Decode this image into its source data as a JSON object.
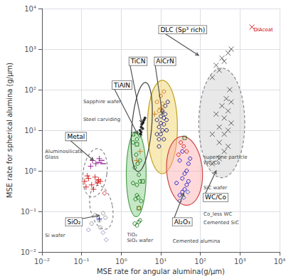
{
  "chart_data": {
    "type": "scatter",
    "x_label": "MSE rate for angular alumina(g/μm)",
    "y_label": "MSE rate for spherical alumina (g/μm)",
    "log": true,
    "grid": true,
    "xlim": [
      0.01,
      10000
    ],
    "ylim": [
      0.01,
      10000
    ],
    "xticks": [
      {
        "value": 0.01,
        "label": "10⁻²"
      },
      {
        "value": 0.1,
        "label": "10⁻¹"
      },
      {
        "value": 1,
        "label": "10⁰"
      },
      {
        "value": 10,
        "label": "10¹"
      },
      {
        "value": 100,
        "label": "10²"
      },
      {
        "value": 1000,
        "label": "10³"
      },
      {
        "value": 10000,
        "label": "10⁴"
      }
    ],
    "yticks": [
      {
        "value": 0.01,
        "label": "10⁻²"
      },
      {
        "value": 0.1,
        "label": "10⁻¹"
      },
      {
        "value": 1,
        "label": "10⁰"
      },
      {
        "value": 10,
        "label": "10¹"
      },
      {
        "value": 100,
        "label": "10²"
      },
      {
        "value": 1000,
        "label": "10³"
      },
      {
        "value": 10000,
        "label": "10⁴"
      }
    ],
    "series": [
      {
        "color": "#cc0000",
        "marker": "plus",
        "x": [
          0.12,
          0.15,
          0.18,
          0.22,
          0.25,
          0.3,
          0.13,
          0.2,
          0.14,
          0.27
        ],
        "values": [
          0.55,
          0.65,
          0.45,
          0.7,
          0.5,
          0.55,
          0.4,
          0.35,
          0.75,
          0.6
        ]
      },
      {
        "color": "#880088",
        "marker": "plus",
        "x": [
          0.19,
          0.23,
          0.28,
          0.17
        ],
        "values": [
          1.8,
          1.5,
          2.0,
          1.3
        ]
      },
      {
        "color": "#cc0000",
        "marker": "diamond",
        "x": [
          0.25,
          0.38
        ],
        "values": [
          0.55,
          0.28
        ]
      },
      {
        "color": "#888888",
        "marker": "circle",
        "x": [
          0.22,
          0.28,
          0.35,
          0.4,
          0.18,
          0.3
        ],
        "values": [
          0.08,
          0.06,
          0.09,
          0.07,
          0.05,
          0.04
        ]
      },
      {
        "color": "#8888cc",
        "marker": "diamond",
        "x": [
          0.15,
          0.35,
          0.42
        ],
        "values": [
          0.035,
          0.03,
          0.02
        ]
      },
      {
        "color": "#0000aa",
        "marker": "plus",
        "x": [
          0.28
        ],
        "values": [
          0.065
        ]
      },
      {
        "color": "#880088",
        "marker": "hbar",
        "x": [
          0.28,
          0.32,
          0.35
        ],
        "values": [
          1.6,
          1.8,
          1.5
        ]
      },
      {
        "color": "#006600",
        "marker": "circle",
        "x": [
          2.2,
          2.5,
          2.8,
          3.0,
          2.3,
          2.5,
          2.7,
          3.2,
          2.0,
          2.5,
          3.0,
          2.8,
          2.2,
          2.6,
          3.0,
          2.4,
          2.0,
          2.5,
          3.0
        ],
        "values": [
          0.05,
          0.045,
          0.055,
          0.06,
          0.2,
          0.25,
          0.22,
          0.18,
          0.5,
          0.45,
          0.55,
          0.8,
          1.2,
          1.5,
          1.8,
          2.5,
          5.0,
          6.0,
          7.5
        ]
      },
      {
        "color": "#006600",
        "marker": "square",
        "x": [
          2.0,
          2.5,
          3.5,
          2.8
        ],
        "values": [
          8.0,
          4.5,
          0.55,
          0.12
        ]
      },
      {
        "color": "#cc6600",
        "marker": "plus",
        "x": [
          2.5,
          3.0
        ],
        "values": [
          1.8,
          3.0
        ]
      },
      {
        "color": "#cc6600",
        "marker": "diamond",
        "x": [
          2.8
        ],
        "values": [
          0.12
        ]
      },
      {
        "color": "#000000",
        "marker": "dot",
        "x": [
          3.0,
          3.2,
          3.5,
          3.8,
          4.0,
          3.1,
          3.3,
          3.6,
          3.2,
          3.5
        ],
        "values": [
          10,
          12,
          15,
          18,
          20,
          8,
          14,
          16,
          9,
          11
        ]
      },
      {
        "color": "#000080",
        "marker": "circle",
        "x": [
          8,
          9,
          10,
          12,
          13,
          11,
          9,
          10,
          12,
          14,
          8,
          10,
          11,
          13,
          15,
          9,
          12,
          14
        ],
        "values": [
          8,
          12,
          15,
          20,
          25,
          10,
          6,
          8,
          14,
          18,
          18,
          22,
          30,
          40,
          50,
          4,
          6,
          10
        ]
      },
      {
        "color": "#cc6600",
        "marker": "circle",
        "x": [
          8,
          10,
          12,
          9,
          11
        ],
        "values": [
          50,
          70,
          90,
          30,
          45
        ]
      },
      {
        "color": "#cc6600",
        "marker": "plus",
        "x": [
          7,
          10
        ],
        "values": [
          25,
          35
        ]
      },
      {
        "color": "#006600",
        "marker": "square",
        "x": [
          40
        ],
        "values": [
          6.5
        ]
      },
      {
        "color": "#0000cc",
        "marker": "circle",
        "x": [
          30,
          35,
          40,
          45,
          50,
          35,
          40,
          45,
          50,
          55,
          30,
          35,
          25
        ],
        "values": [
          0.25,
          0.3,
          0.35,
          0.45,
          0.55,
          0.65,
          0.85,
          1.0,
          1.5,
          2.0,
          1.8,
          3.0,
          0.5
        ]
      },
      {
        "color": "#cc0000",
        "marker": "circle",
        "x": [
          32,
          38,
          45,
          28
        ],
        "values": [
          5.0,
          4.0,
          3.0,
          2.5
        ]
      },
      {
        "color": "#0055cc",
        "marker": "diamond",
        "x": [
          30,
          38,
          48
        ],
        "values": [
          0.18,
          0.22,
          0.3
        ]
      },
      {
        "color": "#404040",
        "marker": "x",
        "x": [
          200,
          300,
          400,
          500,
          300,
          400,
          500,
          600,
          400,
          500,
          600,
          200,
          300,
          250,
          350,
          450,
          550,
          200,
          300,
          400,
          500,
          600,
          250,
          350
        ],
        "values": [
          1.5,
          2.0,
          3.0,
          4.0,
          5.0,
          8.0,
          10,
          15,
          20,
          30,
          50,
          8,
          12,
          25,
          40,
          60,
          100,
          200,
          300,
          500,
          800,
          1000,
          400,
          600
        ]
      },
      {
        "color": "#cc0000",
        "marker": "x",
        "x": [
          2000
        ],
        "values": [
          3500
        ]
      }
    ],
    "ellipses": [
      {
        "cx_log": -0.66,
        "cy_log": -0.05,
        "rx_log": 0.3,
        "ry_log": 0.6,
        "angle": -8,
        "edge_color": "#888888",
        "line_style": "dashed"
      },
      {
        "cx_log": -0.5,
        "cy_log": -0.9,
        "rx_log": 0.28,
        "ry_log": 0.55,
        "angle": 12,
        "edge_color": "#888888",
        "line_style": "dashed"
      },
      {
        "cx_log": 0.38,
        "cy_log": -0.08,
        "rx_log": 0.25,
        "ry_log": 1.05,
        "angle": 0,
        "fill_color": "#80cc80",
        "edge_color": "#50a050",
        "line_style": "solid"
      },
      {
        "cx_log": 1.04,
        "cy_log": 1.08,
        "rx_log": 0.38,
        "ry_log": 1.15,
        "angle": 0,
        "fill_color": "#f0d060",
        "edge_color": "#c0a020",
        "line_style": "solid"
      },
      {
        "cx_log": 0.52,
        "cy_log": 1.08,
        "rx_log": 0.25,
        "ry_log": 1.1,
        "angle": -5,
        "edge_color": "#404040",
        "line_style": "solid"
      },
      {
        "cx_log": 1.6,
        "cy_log": 0.0,
        "rx_log": 0.45,
        "ry_log": 0.85,
        "angle": 5,
        "fill_color": "#ffaaaa",
        "edge_color": "#cc4444",
        "line_style": "solid"
      },
      {
        "cx_log": 2.54,
        "cy_log": 1.18,
        "rx_log": 0.58,
        "ry_log": 1.35,
        "angle": 0,
        "fill_color": "#cccccc",
        "edge_color": "#888888",
        "line_style": "dashed"
      }
    ],
    "annotations": [
      {
        "text": "Metal",
        "x": 0.04,
        "y": 7.0,
        "arrow_x": 0.2,
        "arrow_y": 1.8,
        "color": "#000000"
      },
      {
        "text": "SiO₂",
        "x": 0.04,
        "y": 0.055,
        "arrow_x": 0.28,
        "arrow_y": 0.08,
        "color": "#000000"
      },
      {
        "text": "TiCN",
        "x": 1.6,
        "y": 500,
        "arrow_x": 3.3,
        "arrow_y": 15,
        "color": "#000000"
      },
      {
        "text": "TiAlN",
        "x": 0.6,
        "y": 130,
        "arrow_x": 2.6,
        "arrow_y": 8,
        "color": "#000000"
      },
      {
        "text": "AlCrN",
        "x": 7,
        "y": 500,
        "arrow_x": 11,
        "arrow_y": 25,
        "color": "#000000"
      },
      {
        "text": "DLC (Sp³ rich)",
        "x": 9,
        "y": 3000,
        "arrow_x": 90,
        "arrow_y": 700,
        "color": "#000000"
      },
      {
        "text": "Al₂O₃",
        "x": 20,
        "y": 0.055,
        "arrow_x": 38,
        "arrow_y": 0.28,
        "color": "#000000"
      },
      {
        "text": "WC/Co",
        "x": 120,
        "y": 0.22,
        "arrow_x": 250,
        "arrow_y": 1.0,
        "color": "#000000"
      },
      {
        "text": "Sapphire wafer",
        "x": 0.11,
        "y": 50,
        "color": "#444444"
      },
      {
        "text": "Steel carviding",
        "x": 0.11,
        "y": 18,
        "color": "#444444"
      },
      {
        "text": "Aluminosilicate\nGlass",
        "x": 0.012,
        "y": 2.5,
        "color": "#444444"
      },
      {
        "text": "Si wafer",
        "x": 0.012,
        "y": 0.025,
        "color": "#444444"
      },
      {
        "text": "TiO₂\nSiO₂ wafer",
        "x": 1.4,
        "y": 0.022,
        "color": "#444444"
      },
      {
        "text": "Cemented alumina",
        "x": 20,
        "y": 0.018,
        "color": "#444444"
      },
      {
        "text": "Co_less WC",
        "x": 120,
        "y": 0.085,
        "color": "#444444"
      },
      {
        "text": "Cemented SiC",
        "x": 120,
        "y": 0.052,
        "color": "#444444"
      },
      {
        "text": "SiC wafer",
        "x": 120,
        "y": 0.38,
        "color": "#444444"
      },
      {
        "text": "superfine particle\nWC/Co",
        "x": 120,
        "y": 1.8,
        "color": "#444444"
      },
      {
        "text": "DIAcoat",
        "x": 2200,
        "y": 3000,
        "color": "#cc0000"
      }
    ]
  }
}
